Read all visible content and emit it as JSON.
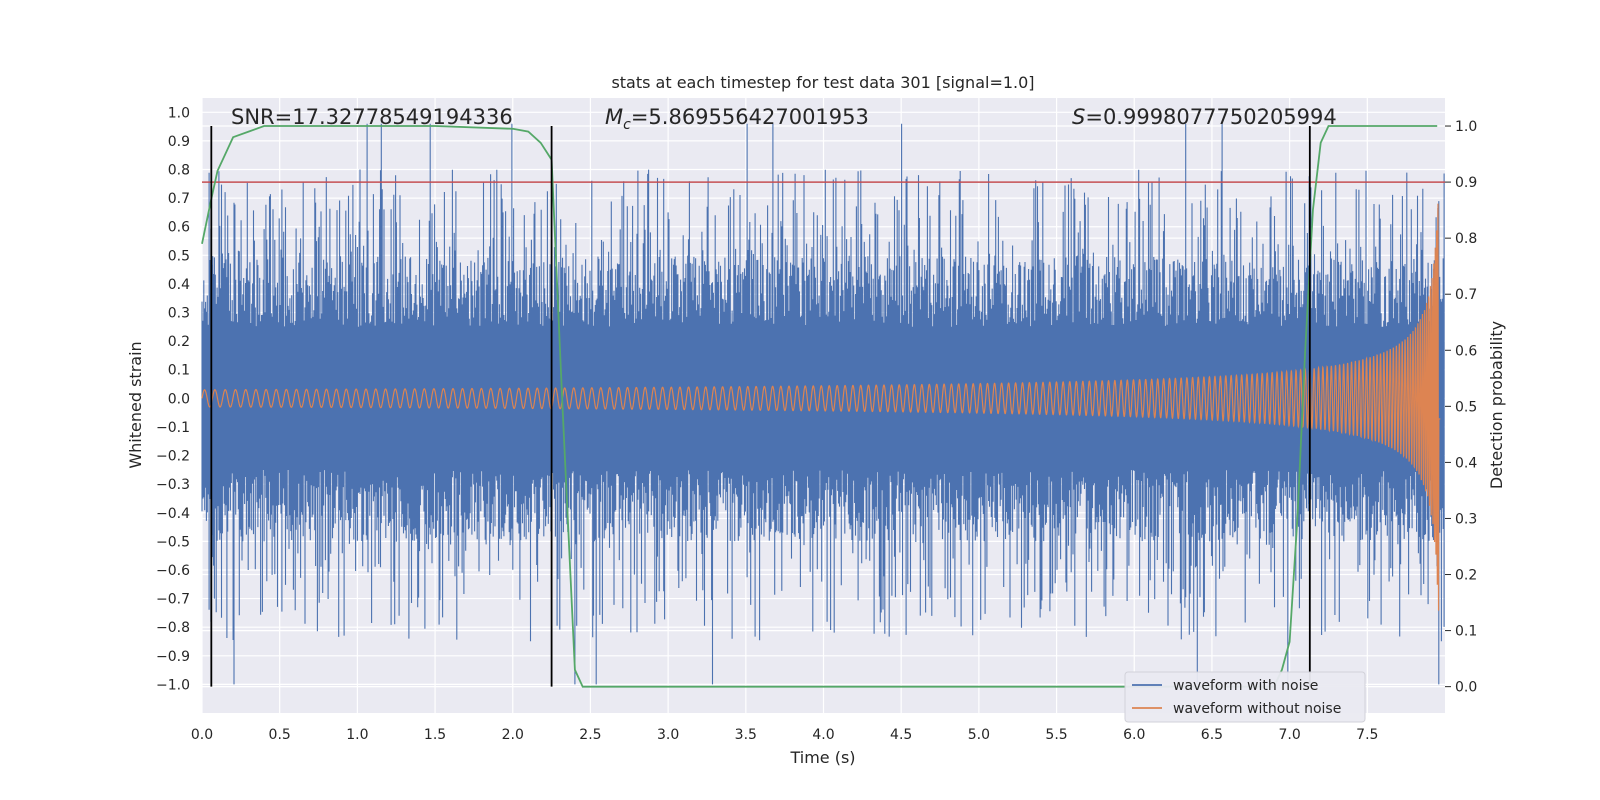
{
  "chart_data": {
    "type": "line",
    "title": "stats at each timestep for test data 301 [signal=1.0]",
    "xlabel": "Time (s)",
    "ylabel": "Whitened strain",
    "y2label": "Detection probability",
    "xlim": [
      0,
      8
    ],
    "ylim": [
      -1.1,
      1.05
    ],
    "y2lim": [
      -0.047,
      1.05
    ],
    "x_ticks": [
      "0.0",
      "0.5",
      "1.0",
      "1.5",
      "2.0",
      "2.5",
      "3.0",
      "3.5",
      "4.0",
      "4.5",
      "5.0",
      "5.5",
      "6.0",
      "6.5",
      "7.0",
      "7.5"
    ],
    "y_ticks": [
      "1.0",
      "0.9",
      "0.8",
      "0.7",
      "0.6",
      "0.5",
      "0.4",
      "0.3",
      "0.2",
      "0.1",
      "0.0",
      "−0.1",
      "−0.2",
      "−0.3",
      "−0.4",
      "−0.5",
      "−0.6",
      "−0.7",
      "−0.8",
      "−0.9",
      "−1.0"
    ],
    "y2_ticks": [
      "1.0",
      "0.9",
      "0.8",
      "0.7",
      "0.6",
      "0.5",
      "0.4",
      "0.3",
      "0.2",
      "0.1",
      "0.0"
    ],
    "grid": true,
    "legend": "bottom-right",
    "annotations": {
      "snr": "SNR=17.32778549194336",
      "mc_symbol": "M",
      "mc_sub": "c",
      "mc_value": "=5.869556427001953",
      "s_symbol": "S",
      "s_value": "=0.9998077750205994"
    },
    "series": [
      {
        "name": "waveform with noise",
        "color": "#4c72b0",
        "axis": "left",
        "duration": 8.0,
        "band_range": [
          -0.6,
          0.6
        ],
        "spike_max": 0.96,
        "spike_min": -1.0
      },
      {
        "name": "waveform without noise",
        "color": "#dd8452",
        "axis": "left",
        "kind": "chirp",
        "amplitude_start": 0.03,
        "amplitude_peak": 0.75
      },
      {
        "name": "detection probability",
        "color": "#55a868",
        "axis": "right",
        "x": [
          0.0,
          0.06,
          0.1,
          0.15,
          0.2,
          0.3,
          0.4,
          0.6,
          1.0,
          1.5,
          2.0,
          2.1,
          2.18,
          2.25,
          2.32,
          2.4,
          2.45,
          2.6,
          6.5,
          6.9,
          6.95,
          7.0,
          7.05,
          7.1,
          7.15,
          7.2,
          7.25,
          7.3,
          7.6,
          7.95
        ],
        "y": [
          0.79,
          0.87,
          0.92,
          0.95,
          0.98,
          0.99,
          1.0,
          1.0,
          1.0,
          1.0,
          0.995,
          0.99,
          0.97,
          0.94,
          0.5,
          0.03,
          0.0,
          0.0,
          0.0,
          0.0,
          0.03,
          0.08,
          0.3,
          0.6,
          0.85,
          0.97,
          1.0,
          1.0,
          1.0,
          1.0
        ]
      }
    ],
    "threshold": {
      "axis": "right",
      "value": 0.9,
      "color": "#c44e52"
    },
    "vlines": [
      0.06,
      2.25,
      7.13
    ]
  }
}
